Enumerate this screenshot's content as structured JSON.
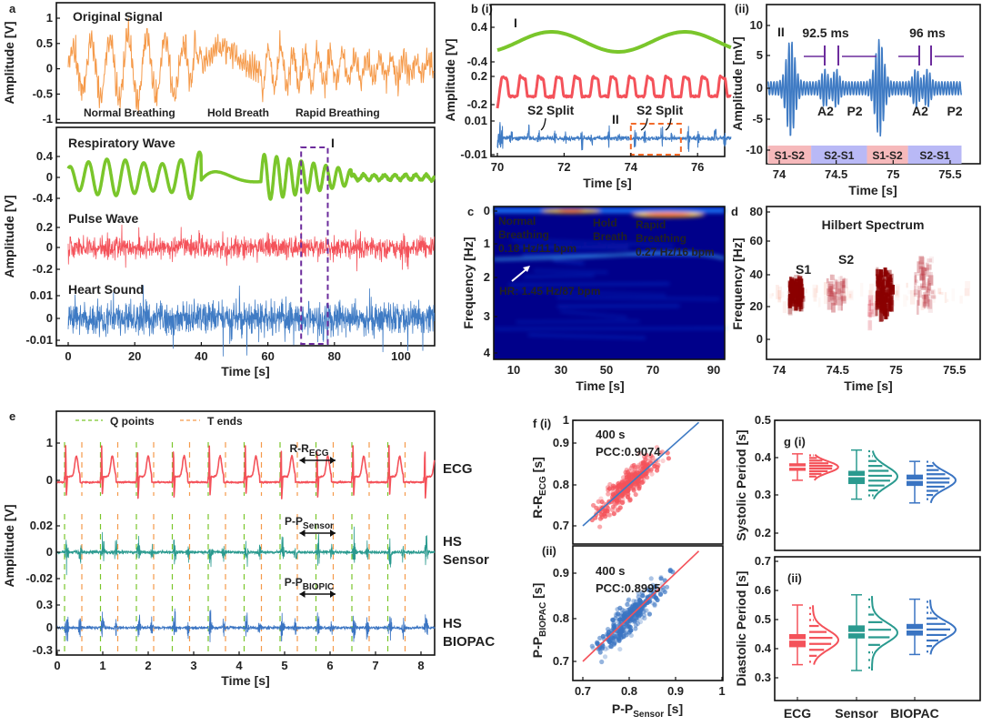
{
  "colors": {
    "original": "#f59a4a",
    "respiratory": "#7ac62b",
    "pulse": "#f4525a",
    "heart": "#3f7bc4",
    "sensor": "#2a9a8f",
    "biopac": "#3a74c2",
    "purple": "#6c2c9c",
    "marker_ii": "#f26a2a",
    "heatmap_bg": "#00008a",
    "hilbert": "#8b0000",
    "band_s1s2": "#f6b9bb",
    "band_s2s1": "#b9b9f6"
  },
  "panel_labels": {
    "a": "a",
    "b": "b (i)",
    "b2": "(ii)",
    "c": "c",
    "d": "d",
    "e": "e",
    "f": "f (i)",
    "f2": "(ii)",
    "g": "g (i)",
    "g2": "(ii)"
  },
  "chart_data": {
    "a": {
      "type": "line",
      "xlabel": "Time [s]",
      "ylabel": "Amplitude [V]",
      "xlim": [
        0,
        110
      ],
      "xticks": [
        "0",
        "20",
        "40",
        "60",
        "80",
        "100"
      ],
      "top": {
        "title": "Original Signal",
        "yticks": [
          "1",
          "0.5",
          "0",
          "-0.5",
          "-1"
        ],
        "annotations": [
          "Normal Breathing",
          "Hold Breath",
          "Rapid Breathing"
        ]
      },
      "series": [
        {
          "name": "Respiratory Wave",
          "yticks": [
            "0.4",
            "0",
            "-0.4"
          ]
        },
        {
          "name": "Pulse Wave",
          "yticks": [
            "0.2",
            "0",
            "-0.2"
          ]
        },
        {
          "name": "Heart Sound",
          "yticks": [
            "0.01",
            "0",
            "-0.01"
          ]
        }
      ],
      "highlight": {
        "label": "I",
        "x_range": [
          70,
          78
        ]
      }
    },
    "b_i": {
      "type": "line",
      "xlabel": "Time [s]",
      "ylabel": "Amplitude [V]",
      "xlim": [
        70,
        77
      ],
      "xticks": [
        "70",
        "72",
        "74",
        "76"
      ],
      "series_yticks": [
        [
          "0.4",
          "-0.4"
        ],
        [
          "0.2",
          "-0.2"
        ],
        [
          "0.01",
          "-0.01"
        ]
      ],
      "marker": "I",
      "region": {
        "label": "II",
        "x_range": [
          74,
          75.5
        ]
      },
      "annotations": [
        "S2 Split",
        "S2 Split"
      ]
    },
    "b_ii": {
      "type": "line",
      "xlabel": "Time [s]",
      "ylabel": "Amplitude [mV]",
      "xlim": [
        73.9,
        75.6
      ],
      "ylim": [
        -12,
        12
      ],
      "xticks": [
        "74",
        "74.5",
        "75",
        "75.5"
      ],
      "yticks": [
        "10",
        "5",
        "0",
        "-5",
        "-10"
      ],
      "marker": "II",
      "intervals": [
        "92.5 ms",
        "96 ms"
      ],
      "peaks": [
        "A2",
        "P2",
        "A2",
        "P2"
      ],
      "phases": [
        {
          "label": "S1-S2",
          "start": 73.9,
          "end": 74.28
        },
        {
          "label": "S2-S1",
          "start": 74.28,
          "end": 74.77
        },
        {
          "label": "S1-S2",
          "start": 74.77,
          "end": 75.13
        },
        {
          "label": "S2-S1",
          "start": 75.13,
          "end": 75.6
        }
      ]
    },
    "c": {
      "type": "heatmap",
      "xlabel": "Time [s]",
      "ylabel": "Frequency [Hz]",
      "xticks": [
        "10",
        "30",
        "50",
        "70",
        "90"
      ],
      "yticks": [
        "0",
        "1",
        "2",
        "3",
        "4"
      ],
      "annotations": {
        "normal": [
          "Normal",
          "Breathing",
          "0.18 Hz/11 bpm"
        ],
        "hold": [
          "Hold",
          "Breath"
        ],
        "rapid": [
          "Rapid",
          "Breathing",
          "0.27 Hz/16 bpm"
        ],
        "hr": "HR: 1.45 Hz/87 bpm"
      }
    },
    "d": {
      "type": "heatmap",
      "title": "Hilbert Spectrum",
      "xlabel": "Time [s]",
      "ylabel": "Frequency [Hz]",
      "xticks": [
        "74",
        "74.5",
        "75",
        "75.5"
      ],
      "yticks": [
        "80",
        "60",
        "40",
        "20",
        "0"
      ],
      "annotations": [
        "S1",
        "S2"
      ]
    },
    "e": {
      "type": "line",
      "xlabel": "Time [s]",
      "ylabel": "Amplitude [V]",
      "xlim": [
        0,
        8.2
      ],
      "xticks": [
        "0",
        "1",
        "2",
        "3",
        "4",
        "5",
        "6",
        "7",
        "8"
      ],
      "legend": [
        "Q points",
        "T ends"
      ],
      "series": [
        {
          "name": "ECG",
          "yticks": [
            "1",
            "0"
          ]
        },
        {
          "name": "HS Sensor",
          "name_lines": [
            "HS",
            "Sensor"
          ],
          "yticks": [
            "0.02",
            "0",
            "-0.02"
          ]
        },
        {
          "name": "HS BIOPAC",
          "name_lines": [
            "HS",
            "BIOPAC"
          ],
          "yticks": [
            "0.3",
            "0",
            "-0.3"
          ]
        }
      ],
      "intervals": [
        {
          "main": "R-R",
          "sub": "ECG"
        },
        {
          "main": "P-P",
          "sub": "Sensor"
        },
        {
          "main": "P-P",
          "sub": "BIOPIC"
        }
      ],
      "beat_period_s": 0.79
    },
    "f": {
      "type": "scatter",
      "xlabel_main": "P-P",
      "xlabel_sub": "Sensor",
      "xlabel_unit": " [s]",
      "xticks": [
        "0.7",
        "0.8",
        "0.9",
        "1"
      ],
      "panels": [
        {
          "ylabel_main": "R-R",
          "ylabel_sub": "ECG",
          "ylabel_unit": " [s]",
          "yticks": [
            "1",
            "0.9",
            "0.8",
            "0.7"
          ],
          "duration": "400 s",
          "pcc": "PCC:0.9074",
          "pcc_value": 0.9074
        },
        {
          "ylabel_main": "P-P",
          "ylabel_sub": "BIOPAC",
          "ylabel_unit": " [s]",
          "yticks": [
            "0.9",
            "0.8",
            "0.7"
          ],
          "duration": "400 s",
          "pcc": "PCC:0.8995",
          "pcc_value": 0.8995
        }
      ]
    },
    "g": {
      "type": "box",
      "categories": [
        "ECG",
        "Sensor",
        "BIOPAC"
      ],
      "panels": [
        {
          "ylabel": "Systolic Period [s]",
          "yticks": [
            "0.5",
            "0.4",
            "0.3",
            "0.2"
          ],
          "boxes": [
            {
              "min": 0.34,
              "q1": 0.365,
              "median": 0.375,
              "q3": 0.385,
              "max": 0.41
            },
            {
              "min": 0.29,
              "q1": 0.33,
              "median": 0.35,
              "q3": 0.365,
              "max": 0.42
            },
            {
              "min": 0.28,
              "q1": 0.325,
              "median": 0.34,
              "q3": 0.355,
              "max": 0.39
            }
          ]
        },
        {
          "ylabel": "Diastolic Period [s]",
          "yticks": [
            "0.7",
            "0.6",
            "0.5",
            "0.4",
            "0.3"
          ],
          "boxes": [
            {
              "min": 0.345,
              "q1": 0.405,
              "median": 0.43,
              "q3": 0.45,
              "max": 0.55
            },
            {
              "min": 0.325,
              "q1": 0.435,
              "median": 0.455,
              "q3": 0.48,
              "max": 0.585
            },
            {
              "min": 0.38,
              "q1": 0.445,
              "median": 0.465,
              "q3": 0.485,
              "max": 0.57
            }
          ]
        }
      ]
    }
  }
}
